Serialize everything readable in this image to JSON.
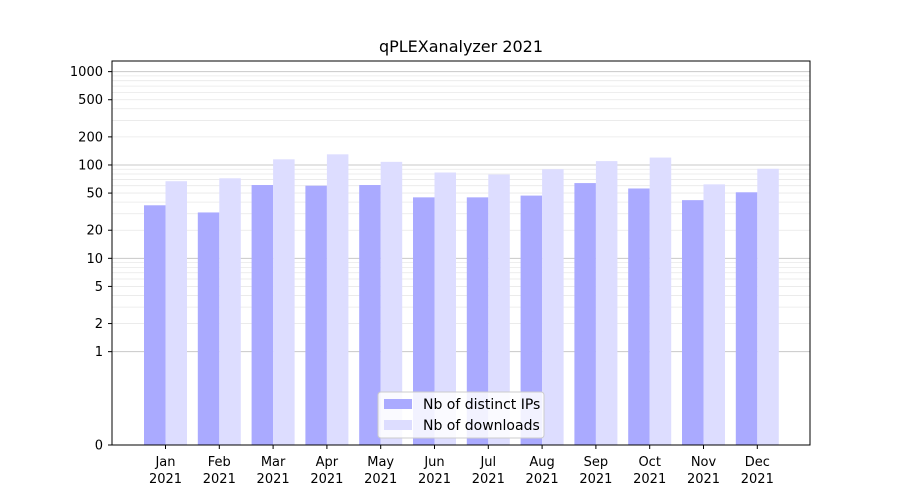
{
  "chart_data": {
    "type": "bar",
    "title": "qPLEXanalyzer 2021",
    "categories": [
      {
        "month": "Jan",
        "year": "2021"
      },
      {
        "month": "Feb",
        "year": "2021"
      },
      {
        "month": "Mar",
        "year": "2021"
      },
      {
        "month": "Apr",
        "year": "2021"
      },
      {
        "month": "May",
        "year": "2021"
      },
      {
        "month": "Jun",
        "year": "2021"
      },
      {
        "month": "Jul",
        "year": "2021"
      },
      {
        "month": "Aug",
        "year": "2021"
      },
      {
        "month": "Sep",
        "year": "2021"
      },
      {
        "month": "Oct",
        "year": "2021"
      },
      {
        "month": "Nov",
        "year": "2021"
      },
      {
        "month": "Dec",
        "year": "2021"
      }
    ],
    "series": [
      {
        "name": "Nb of distinct IPs",
        "color": "#aaaaff",
        "values": [
          37,
          31,
          61,
          60,
          61,
          45,
          45,
          47,
          64,
          56,
          42,
          51
        ]
      },
      {
        "name": "Nb of downloads",
        "color": "#ddddff",
        "values": [
          67,
          72,
          115,
          130,
          108,
          83,
          79,
          90,
          110,
          120,
          62,
          91
        ]
      }
    ],
    "yscale": "symlog",
    "yticks": [
      0,
      1,
      2,
      5,
      10,
      20,
      50,
      100,
      200,
      500,
      1000
    ],
    "ylim": [
      0,
      1300
    ],
    "grid": true,
    "legend": "lower-center",
    "xlabel": "",
    "ylabel": ""
  }
}
